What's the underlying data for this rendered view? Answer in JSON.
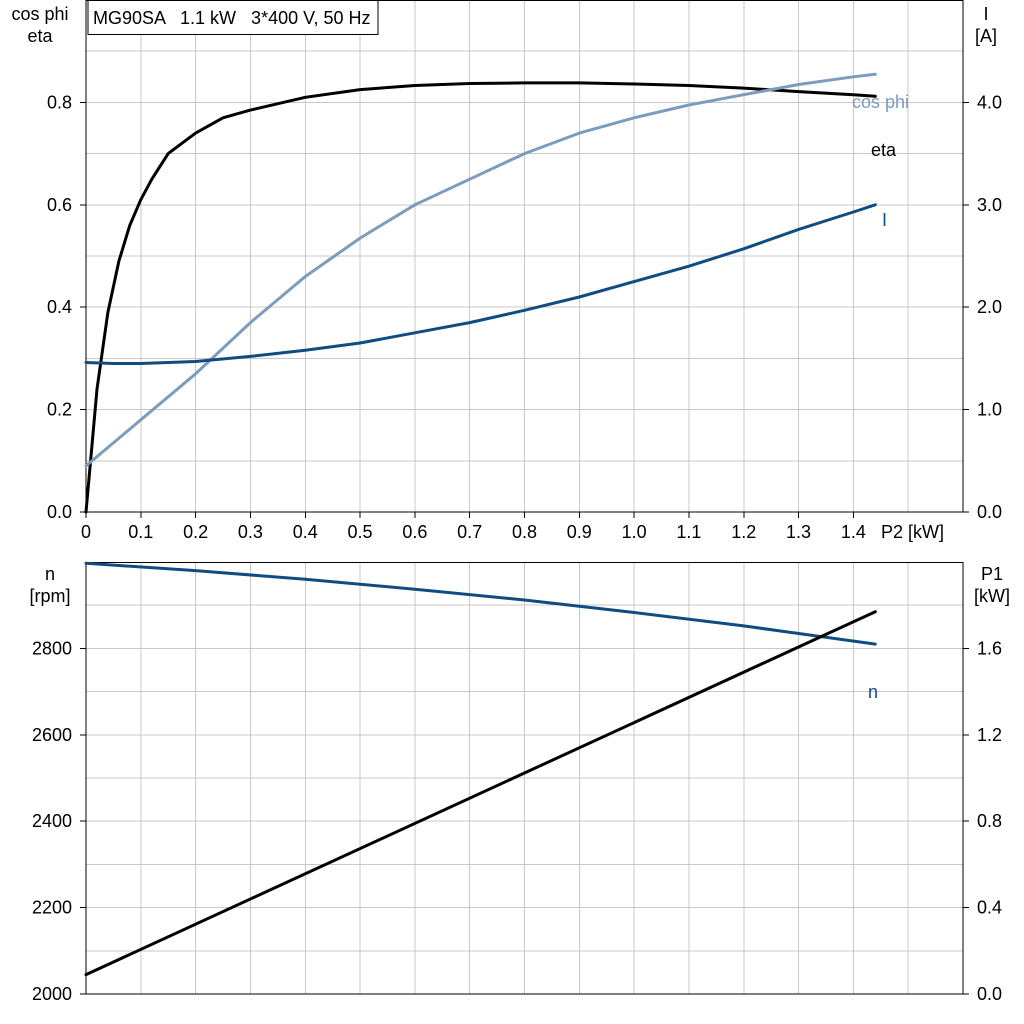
{
  "chart_data": [
    {
      "type": "line",
      "title": "MG90SA   1.1 kW   3*400 V, 50 Hz",
      "xlabel": "P2 [kW]",
      "ylabel_left": [
        "cos phi",
        "eta"
      ],
      "ylabel_right": [
        "I",
        "[A]"
      ],
      "xlim": [
        0,
        1.6
      ],
      "ylim_left": [
        0,
        1.0
      ],
      "ylim_right": [
        0,
        5.0
      ],
      "x_ticks": [
        0,
        0.1,
        0.2,
        0.3,
        0.4,
        0.5,
        0.6,
        0.7,
        0.8,
        0.9,
        1.0,
        1.1,
        1.2,
        1.3,
        1.4
      ],
      "x_tick_labels": [
        "0",
        "0.1",
        "0.2",
        "0.3",
        "0.4",
        "0.5",
        "0.6",
        "0.7",
        "0.8",
        "0.9",
        "1.0",
        "1.1",
        "1.2",
        "1.3",
        "1.4"
      ],
      "y_left_ticks": [
        0,
        0.2,
        0.4,
        0.6,
        0.8
      ],
      "y_left_tick_labels": [
        "0.0",
        "0.2",
        "0.4",
        "0.6",
        "0.8"
      ],
      "y_right_ticks": [
        0,
        1,
        2,
        3,
        4
      ],
      "y_right_tick_labels": [
        "0.0",
        "1.0",
        "2.0",
        "3.0",
        "4.0"
      ],
      "grid": true,
      "series": [
        {
          "name": "eta",
          "axis": "left",
          "color": "#000000",
          "x": [
            0,
            0.02,
            0.04,
            0.06,
            0.08,
            0.1,
            0.12,
            0.15,
            0.2,
            0.25,
            0.3,
            0.4,
            0.5,
            0.6,
            0.7,
            0.8,
            0.9,
            1.0,
            1.1,
            1.2,
            1.3,
            1.4,
            1.44
          ],
          "y": [
            0,
            0.24,
            0.39,
            0.49,
            0.56,
            0.61,
            0.65,
            0.7,
            0.74,
            0.77,
            0.785,
            0.81,
            0.825,
            0.833,
            0.837,
            0.838,
            0.838,
            0.836,
            0.833,
            0.828,
            0.821,
            0.815,
            0.812
          ]
        },
        {
          "name": "cos phi",
          "axis": "left",
          "color": "#7c9cbd",
          "x": [
            0,
            0.1,
            0.2,
            0.3,
            0.4,
            0.5,
            0.6,
            0.7,
            0.8,
            0.9,
            1.0,
            1.1,
            1.2,
            1.3,
            1.4,
            1.44
          ],
          "y": [
            0.09,
            0.18,
            0.27,
            0.37,
            0.46,
            0.535,
            0.6,
            0.65,
            0.7,
            0.74,
            0.77,
            0.795,
            0.815,
            0.835,
            0.85,
            0.855
          ]
        },
        {
          "name": "I",
          "axis": "right",
          "color": "#0f4c81",
          "x": [
            0,
            0.05,
            0.1,
            0.2,
            0.3,
            0.4,
            0.5,
            0.6,
            0.7,
            0.8,
            0.9,
            1.0,
            1.1,
            1.2,
            1.3,
            1.4,
            1.44
          ],
          "y": [
            1.46,
            1.45,
            1.45,
            1.47,
            1.52,
            1.58,
            1.65,
            1.75,
            1.85,
            1.97,
            2.1,
            2.25,
            2.4,
            2.57,
            2.76,
            2.93,
            3.0
          ]
        }
      ]
    },
    {
      "type": "line",
      "ylabel_left": [
        "n",
        "[rpm]"
      ],
      "ylabel_right": [
        "P1",
        "[kW]"
      ],
      "xlim": [
        0,
        1.6
      ],
      "ylim_left": [
        2000,
        3000
      ],
      "ylim_right": [
        0,
        2.0
      ],
      "y_left_ticks": [
        2000,
        2200,
        2400,
        2600,
        2800
      ],
      "y_left_tick_labels": [
        "2000",
        "2200",
        "2400",
        "2600",
        "2800"
      ],
      "y_right_ticks": [
        0,
        0.4,
        0.8,
        1.2,
        1.6
      ],
      "y_right_tick_labels": [
        "0.0",
        "0.4",
        "0.8",
        "1.2",
        "1.6"
      ],
      "grid": true,
      "series": [
        {
          "name": "n",
          "axis": "left",
          "color": "#0f4c81",
          "x": [
            0,
            0.2,
            0.4,
            0.6,
            0.8,
            1.0,
            1.2,
            1.44
          ],
          "y": [
            2997,
            2980,
            2960,
            2937,
            2912,
            2883,
            2852,
            2810
          ]
        },
        {
          "axis": "right",
          "color": "#000000",
          "x": [
            0,
            1.44
          ],
          "y": [
            0.09,
            1.77
          ]
        }
      ]
    }
  ]
}
